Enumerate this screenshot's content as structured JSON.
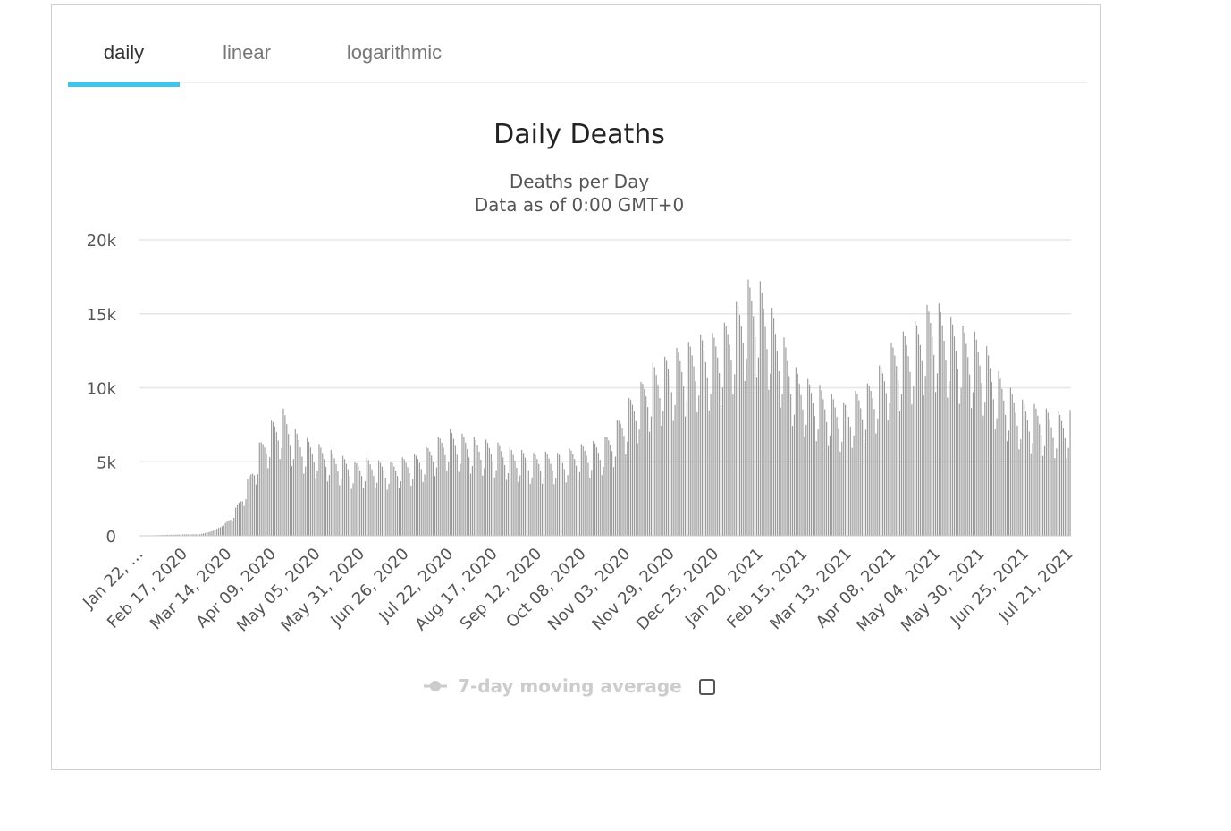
{
  "tabs": [
    {
      "label": "daily",
      "active": true
    },
    {
      "label": "linear",
      "active": false
    },
    {
      "label": "logarithmic",
      "active": false
    }
  ],
  "colors": {
    "accent": "#3ec6ea",
    "bar": "#999999",
    "grid": "#e6e6e6",
    "legend_inactive": "#cccccc"
  },
  "chart_data": {
    "type": "bar",
    "title": "Daily Deaths",
    "subtitle_lines": [
      "Deaths per Day",
      "Data as of 0:00 GMT+0"
    ],
    "xlabel": "",
    "ylabel": "",
    "ylim": [
      0,
      20000
    ],
    "yticks": [
      {
        "value": 0,
        "label": "0"
      },
      {
        "value": 5000,
        "label": "5k"
      },
      {
        "value": 10000,
        "label": "10k"
      },
      {
        "value": 15000,
        "label": "15k"
      },
      {
        "value": 20000,
        "label": "20k"
      }
    ],
    "x_start": "2020-01-22",
    "x_end": "2021-07-21",
    "xticks": [
      "Jan 22, …",
      "Feb 17, 2020",
      "Mar 14, 2020",
      "Apr 09, 2020",
      "May 05, 2020",
      "May 31, 2020",
      "Jun 26, 2020",
      "Jul 22, 2020",
      "Aug 17, 2020",
      "Sep 12, 2020",
      "Oct 08, 2020",
      "Nov 03, 2020",
      "Nov 29, 2020",
      "Dec 25, 2020",
      "Jan 20, 2021",
      "Feb 15, 2021",
      "Mar 13, 2021",
      "Apr 08, 2021",
      "May 04, 2021",
      "May 30, 2021",
      "Jun 25, 2021",
      "Jul 21, 2021"
    ],
    "grid": true,
    "legend_position": "bottom-center",
    "series": [
      {
        "name": "7-day moving average",
        "enabled": false
      }
    ],
    "weekly_values": {
      "weeks_from_start": [
        "2020-01-22",
        "2020-01-29",
        "2020-02-05",
        "2020-02-12",
        "2020-02-19",
        "2020-02-26",
        "2020-03-04",
        "2020-03-11",
        "2020-03-18",
        "2020-03-25",
        "2020-04-01",
        "2020-04-08",
        "2020-04-15",
        "2020-04-22",
        "2020-04-29",
        "2020-05-06",
        "2020-05-13",
        "2020-05-20",
        "2020-05-27",
        "2020-06-03",
        "2020-06-10",
        "2020-06-17",
        "2020-06-24",
        "2020-07-01",
        "2020-07-08",
        "2020-07-15",
        "2020-07-22",
        "2020-07-29",
        "2020-08-05",
        "2020-08-12",
        "2020-08-19",
        "2020-08-26",
        "2020-09-02",
        "2020-09-09",
        "2020-09-16",
        "2020-09-23",
        "2020-09-30",
        "2020-10-07",
        "2020-10-14",
        "2020-10-21",
        "2020-10-28",
        "2020-11-04",
        "2020-11-11",
        "2020-11-18",
        "2020-11-25",
        "2020-12-02",
        "2020-12-09",
        "2020-12-16",
        "2020-12-23",
        "2020-12-30",
        "2021-01-06",
        "2021-01-13",
        "2021-01-20",
        "2021-01-27",
        "2021-02-03",
        "2021-02-10",
        "2021-02-17",
        "2021-02-24",
        "2021-03-03",
        "2021-03-10",
        "2021-03-17",
        "2021-03-24",
        "2021-03-31",
        "2021-04-07",
        "2021-04-14",
        "2021-04-21",
        "2021-04-28",
        "2021-05-05",
        "2021-05-12",
        "2021-05-19",
        "2021-05-26",
        "2021-06-02",
        "2021-06-09",
        "2021-06-16",
        "2021-06-23",
        "2021-06-30",
        "2021-07-07",
        "2021-07-14",
        "2021-07-21"
      ],
      "peak": [
        20,
        30,
        60,
        80,
        100,
        100,
        300,
        700,
        1900,
        3800,
        6300,
        7800,
        8600,
        7200,
        6600,
        6200,
        5800,
        5400,
        5000,
        5300,
        5100,
        5000,
        5300,
        5500,
        6000,
        6700,
        7200,
        6900,
        6700,
        6500,
        6300,
        6000,
        5800,
        5600,
        5700,
        5600,
        5900,
        6200,
        6400,
        6700,
        7800,
        9300,
        10400,
        11700,
        12100,
        12700,
        13100,
        13600,
        13700,
        14400,
        15800,
        17300,
        17200,
        15400,
        13400,
        11400,
        10600,
        10200,
        9600,
        9000,
        9800,
        10300,
        11500,
        13000,
        13800,
        14500,
        15600,
        15700,
        14800,
        14200,
        13800,
        12800,
        11100,
        10000,
        9200,
        8900,
        8600,
        8400,
        8500
      ],
      "trough_ratio": 0.62
    }
  },
  "legend": {
    "series_label": "7-day moving average"
  }
}
